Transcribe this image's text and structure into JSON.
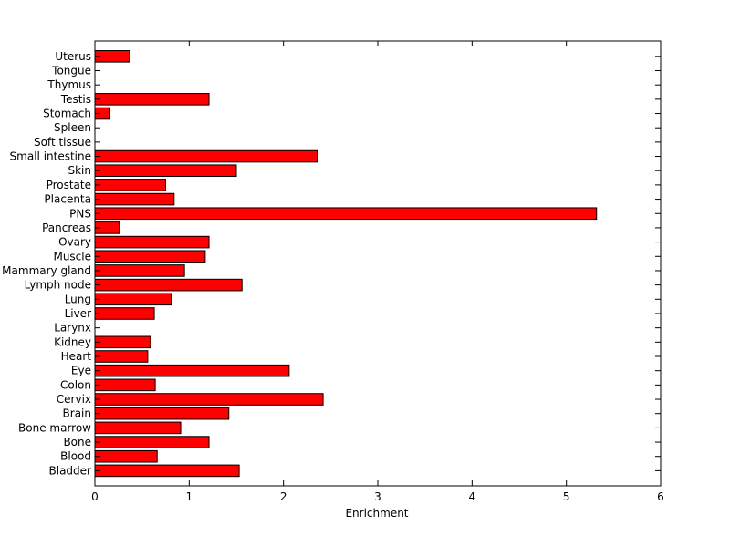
{
  "chart_data": {
    "type": "bar",
    "orientation": "horizontal",
    "title": "",
    "xlabel": "Enrichment",
    "ylabel": "",
    "xlim": [
      0,
      6
    ],
    "xticks": [
      "0",
      "1",
      "2",
      "3",
      "4",
      "5",
      "6"
    ],
    "grid": false,
    "legend": "none",
    "bar_color": "#ff0000",
    "bar_edge_color": "#000000",
    "categories": [
      "Bladder",
      "Blood",
      "Bone",
      "Bone marrow",
      "Brain",
      "Cervix",
      "Colon",
      "Eye",
      "Heart",
      "Kidney",
      "Larynx",
      "Liver",
      "Lung",
      "Lymph node",
      "Mammary gland",
      "Muscle",
      "Ovary",
      "Pancreas",
      "PNS",
      "Placenta",
      "Prostate",
      "Skin",
      "Small intestine",
      "Soft tissue",
      "Spleen",
      "Stomach",
      "Testis",
      "Thymus",
      "Tongue",
      "Uterus"
    ],
    "values": [
      1.53,
      0.66,
      1.21,
      0.91,
      1.42,
      2.42,
      0.64,
      2.06,
      0.56,
      0.59,
      0,
      0.63,
      0.81,
      1.56,
      0.95,
      1.17,
      1.21,
      0.26,
      5.32,
      0.84,
      0.75,
      1.5,
      2.36,
      0,
      0,
      0.15,
      1.21,
      0,
      0,
      0.37
    ]
  }
}
